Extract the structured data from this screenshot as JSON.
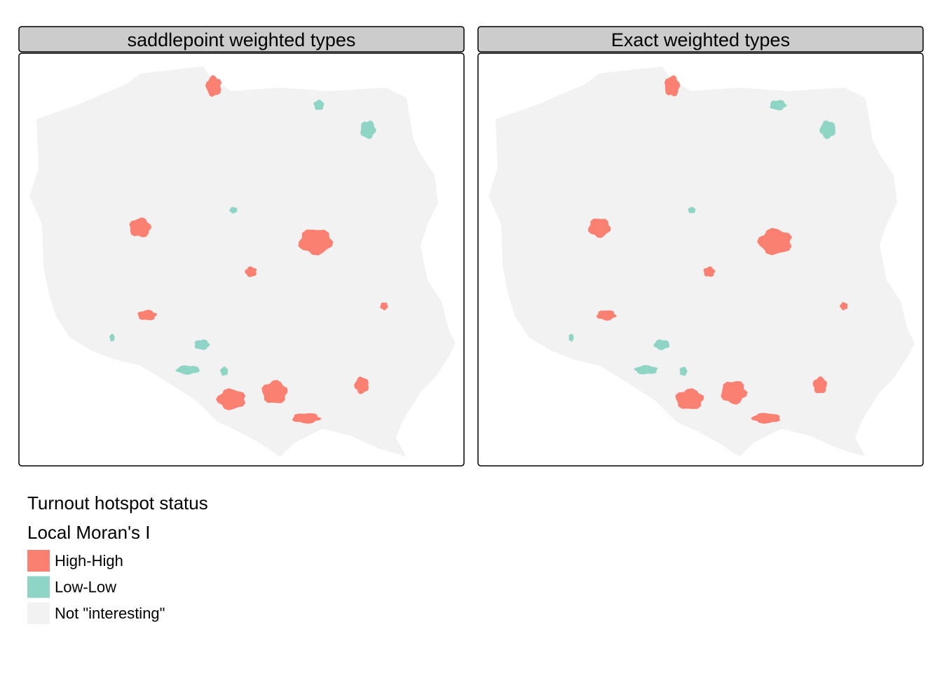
{
  "panels": [
    {
      "title": "saddlepoint weighted types"
    },
    {
      "title": "Exact weighted types"
    }
  ],
  "legend": {
    "title": [
      "Turnout hotspot status",
      "Local Moran's I"
    ],
    "items": [
      {
        "label": "High-High",
        "color": "#fa8072"
      },
      {
        "label": "Low-Low",
        "color": "#8fd5c5"
      },
      {
        "label": "Not \"interesting\"",
        "color": "#f2f2f2"
      }
    ]
  }
}
